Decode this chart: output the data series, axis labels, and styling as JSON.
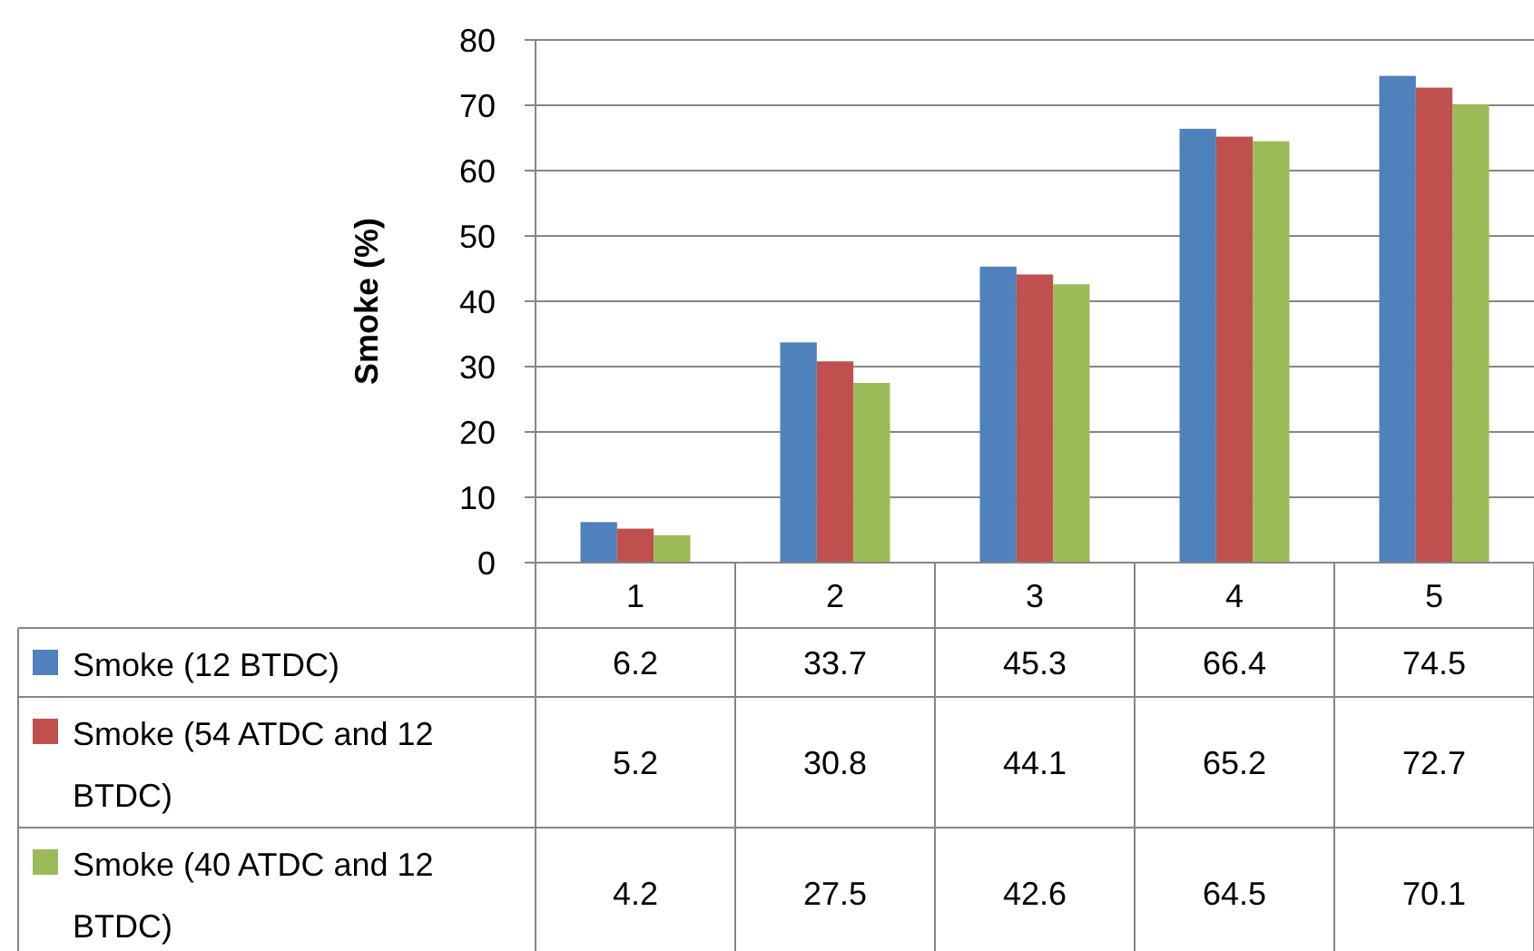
{
  "chart_data": {
    "type": "bar",
    "ylabel": "Smoke (%)",
    "categories": [
      "1",
      "2",
      "3",
      "4",
      "5"
    ],
    "series": [
      {
        "name": "Smoke (12 BTDC)",
        "color": "#4f81bd",
        "values": [
          6.2,
          33.7,
          45.3,
          66.4,
          74.5
        ]
      },
      {
        "name": "Smoke (54 ATDC and 12 BTDC)",
        "color": "#c0504d",
        "values": [
          5.2,
          30.8,
          44.1,
          65.2,
          72.7
        ]
      },
      {
        "name": "Smoke (40 ATDC and 12 BTDC)",
        "color": "#9bbb59",
        "values": [
          4.2,
          27.5,
          42.6,
          64.5,
          70.1
        ]
      }
    ],
    "ylim": [
      0,
      80
    ],
    "yticks": [
      0,
      10,
      20,
      30,
      40,
      50,
      60,
      70,
      80
    ],
    "grid": "y",
    "legend": "bottom",
    "data_labels": true
  }
}
